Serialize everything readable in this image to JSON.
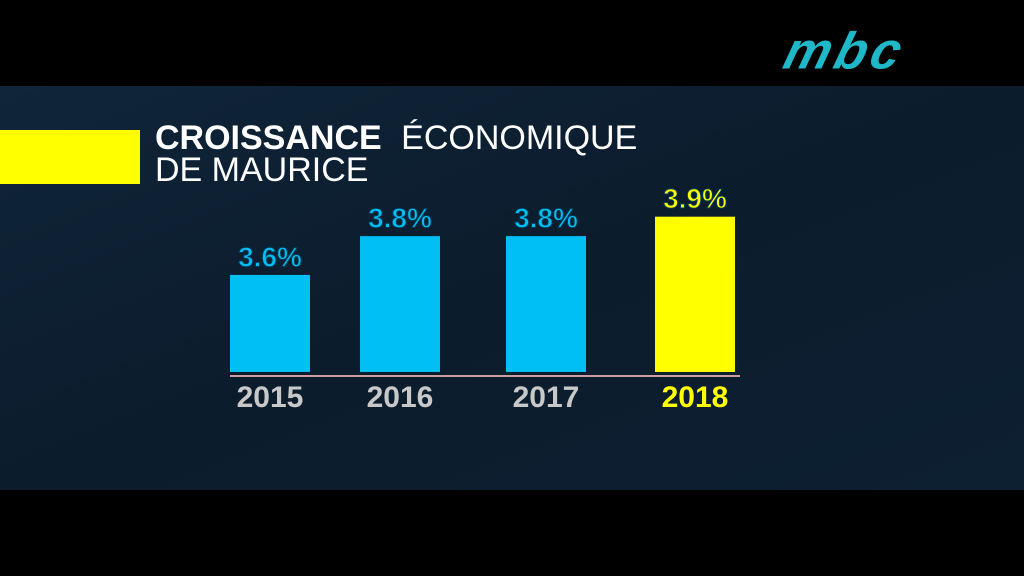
{
  "logo": "mbc",
  "chart_data": {
    "type": "bar",
    "title": "CROISSANCE",
    "title_rest": "ÉCONOMIQUE",
    "subtitle": "DE MAURICE",
    "categories": [
      "2015",
      "2016",
      "2017",
      "2018"
    ],
    "values": [
      3.6,
      3.8,
      3.8,
      3.9
    ],
    "value_labels": [
      "3.6%",
      "3.8%",
      "3.8%",
      "3.9%"
    ],
    "colors": [
      "#00bff3",
      "#00bff3",
      "#00bff3",
      "#ffff00"
    ],
    "label_colors": [
      "#c8c8c8",
      "#c8c8c8",
      "#c8c8c8",
      "#ffff00"
    ],
    "value_label_colors": [
      "#00bff3",
      "#00bff3",
      "#00bff3",
      "#ffff00"
    ],
    "ylim": [
      3.1,
      4.0
    ]
  }
}
